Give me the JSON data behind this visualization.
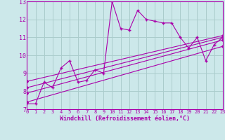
{
  "xlabel": "Windchill (Refroidissement éolien,°C)",
  "bg_color": "#cce8ea",
  "grid_color": "#aacccc",
  "line_color": "#aa00aa",
  "ylim": [
    7,
    13
  ],
  "xlim": [
    0,
    23
  ],
  "yticks": [
    7,
    8,
    9,
    10,
    11,
    12,
    13
  ],
  "xticks": [
    0,
    1,
    2,
    3,
    4,
    5,
    6,
    7,
    8,
    9,
    10,
    11,
    12,
    13,
    14,
    15,
    16,
    17,
    18,
    19,
    20,
    21,
    22,
    23
  ],
  "main_x": [
    0,
    1,
    2,
    3,
    4,
    5,
    6,
    7,
    8,
    9,
    10,
    11,
    12,
    13,
    14,
    15,
    16,
    17,
    18,
    19,
    20,
    21,
    22,
    23
  ],
  "main_y": [
    7.3,
    7.3,
    8.5,
    8.2,
    9.3,
    9.7,
    8.5,
    8.6,
    9.2,
    9.0,
    13.0,
    11.5,
    11.4,
    12.5,
    12.0,
    11.9,
    11.8,
    11.8,
    11.0,
    10.4,
    11.0,
    9.7,
    10.6,
    11.0
  ],
  "trend_lines": [
    {
      "x": [
        0,
        23
      ],
      "y": [
        7.4,
        10.5
      ]
    },
    {
      "x": [
        0,
        23
      ],
      "y": [
        7.9,
        10.85
      ]
    },
    {
      "x": [
        0,
        23
      ],
      "y": [
        8.2,
        11.0
      ]
    },
    {
      "x": [
        0,
        23
      ],
      "y": [
        8.55,
        11.1
      ]
    }
  ]
}
